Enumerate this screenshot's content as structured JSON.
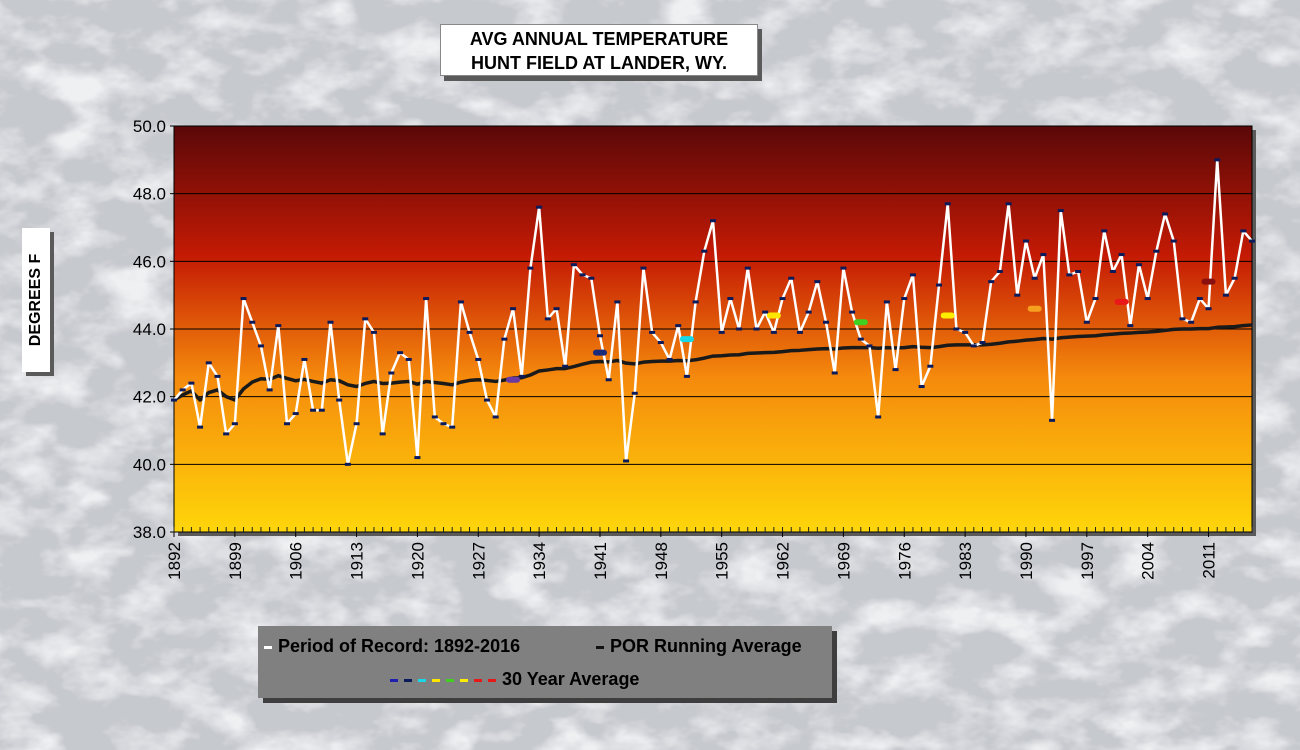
{
  "title": {
    "line1": "AVG ANNUAL  TEMPERATURE",
    "line2": "HUNT FIELD AT LANDER, WY."
  },
  "colors": {
    "plot_top": "#5a0808",
    "plot_mid": "#c41a04",
    "plot_orange": "#f58a0c",
    "plot_bottom": "#ffd60a",
    "annual_line": "#ffffff",
    "running_avg": "#1a1a1a",
    "marker": "#0a1a5a"
  },
  "chart_data": {
    "type": "line",
    "title": "AVG ANNUAL  TEMPERATURE HUNT FIELD AT LANDER, WY.",
    "ylabel": "DEGREES F",
    "xlabel": "",
    "ylim": [
      38.0,
      50.0
    ],
    "yticks": [
      "38.0",
      "40.0",
      "42.0",
      "44.0",
      "46.0",
      "48.0",
      "50.0"
    ],
    "xlim": [
      1892,
      2016
    ],
    "xticks": [
      "1892",
      "1899",
      "1906",
      "1913",
      "1920",
      "1927",
      "1934",
      "1941",
      "1948",
      "1955",
      "1962",
      "1969",
      "1976",
      "1983",
      "1990",
      "1997",
      "2004",
      "2011"
    ],
    "grid": true,
    "legend_position": "bottom",
    "legend": {
      "annual": "Period of Record: 1892-2016",
      "running": "POR Running Average",
      "thirty": "30 Year Average"
    },
    "series": [
      {
        "name": "Period of Record: 1892-2016",
        "x_start": 1892,
        "values": [
          41.9,
          42.2,
          42.4,
          41.1,
          43.0,
          42.6,
          40.9,
          41.2,
          44.9,
          44.2,
          43.5,
          42.2,
          44.1,
          41.2,
          41.5,
          43.1,
          41.6,
          41.6,
          44.2,
          41.9,
          40.0,
          41.2,
          44.3,
          43.9,
          40.9,
          42.7,
          43.3,
          43.1,
          40.2,
          44.9,
          41.4,
          41.2,
          41.1,
          44.8,
          43.9,
          43.1,
          41.9,
          41.4,
          43.7,
          44.6,
          42.6,
          45.8,
          47.6,
          44.3,
          44.6,
          42.9,
          45.9,
          45.6,
          45.5,
          43.8,
          42.5,
          44.8,
          40.1,
          42.1,
          45.8,
          43.9,
          43.6,
          43.1,
          44.1,
          42.6,
          44.8,
          46.3,
          47.2,
          43.9,
          44.9,
          44.0,
          45.8,
          44.0,
          44.5,
          43.9,
          44.9,
          45.5,
          43.9,
          44.5,
          45.4,
          44.2,
          42.7,
          45.8,
          44.5,
          43.7,
          43.5,
          41.4,
          44.8,
          42.8,
          44.9,
          45.6,
          42.3,
          42.9,
          45.3,
          47.7,
          44.0,
          43.9,
          43.5,
          43.6,
          45.4,
          45.7,
          47.7,
          45.0,
          46.6,
          45.5,
          46.2,
          41.3,
          47.5,
          45.6,
          45.7,
          44.2,
          44.9,
          46.9,
          45.7,
          46.2,
          44.1,
          45.9,
          44.9,
          46.3,
          47.4,
          46.6,
          44.3,
          44.2,
          44.9,
          44.6,
          49.0,
          45.0,
          45.5,
          46.9,
          46.6
        ]
      },
      {
        "name": "POR Running Average",
        "x_start": 1892,
        "values": [
          41.9,
          42.05,
          42.17,
          41.9,
          42.12,
          42.2,
          42.0,
          41.9,
          42.23,
          42.43,
          42.53,
          42.51,
          42.62,
          42.54,
          42.47,
          42.51,
          42.45,
          42.4,
          42.5,
          42.47,
          42.35,
          42.3,
          42.39,
          42.45,
          42.39,
          42.4,
          42.43,
          42.45,
          42.37,
          42.45,
          42.42,
          42.39,
          42.35,
          42.43,
          42.48,
          42.5,
          42.48,
          42.45,
          42.49,
          42.55,
          42.56,
          42.64,
          42.76,
          42.79,
          42.83,
          42.83,
          42.89,
          42.96,
          43.02,
          43.04,
          43.03,
          43.07,
          42.99,
          42.97,
          43.02,
          43.04,
          43.05,
          43.05,
          43.07,
          43.06,
          43.09,
          43.14,
          43.2,
          43.21,
          43.23,
          43.24,
          43.28,
          43.29,
          43.3,
          43.31,
          43.33,
          43.36,
          43.37,
          43.39,
          43.41,
          43.42,
          43.41,
          43.44,
          43.45,
          43.45,
          43.45,
          43.43,
          43.45,
          43.44,
          43.45,
          43.48,
          43.46,
          43.45,
          43.48,
          43.52,
          43.53,
          43.53,
          43.53,
          43.53,
          43.55,
          43.58,
          43.62,
          43.64,
          43.67,
          43.69,
          43.72,
          43.7,
          43.74,
          43.76,
          43.78,
          43.79,
          43.8,
          43.83,
          43.85,
          43.87,
          43.88,
          43.9,
          43.91,
          43.93,
          43.96,
          43.99,
          44.0,
          44.0,
          44.01,
          44.01,
          44.05,
          44.06,
          44.07,
          44.1,
          44.12
        ]
      }
    ],
    "thirty_year_averages": [
      {
        "x": 1931,
        "value": 42.5,
        "color": "#6a3aa2"
      },
      {
        "x": 1941,
        "value": 43.3,
        "color": "#1a2a7a"
      },
      {
        "x": 1951,
        "value": 43.7,
        "color": "#18d8e8"
      },
      {
        "x": 1961,
        "value": 44.4,
        "color": "#ffe600"
      },
      {
        "x": 1971,
        "value": 44.2,
        "color": "#40d020"
      },
      {
        "x": 1981,
        "value": 44.4,
        "color": "#ffee00"
      },
      {
        "x": 1991,
        "value": 44.6,
        "color": "#f6a020"
      },
      {
        "x": 2001,
        "value": 44.8,
        "color": "#e81818"
      },
      {
        "x": 2011,
        "value": 45.4,
        "color": "#8a1010"
      }
    ]
  }
}
